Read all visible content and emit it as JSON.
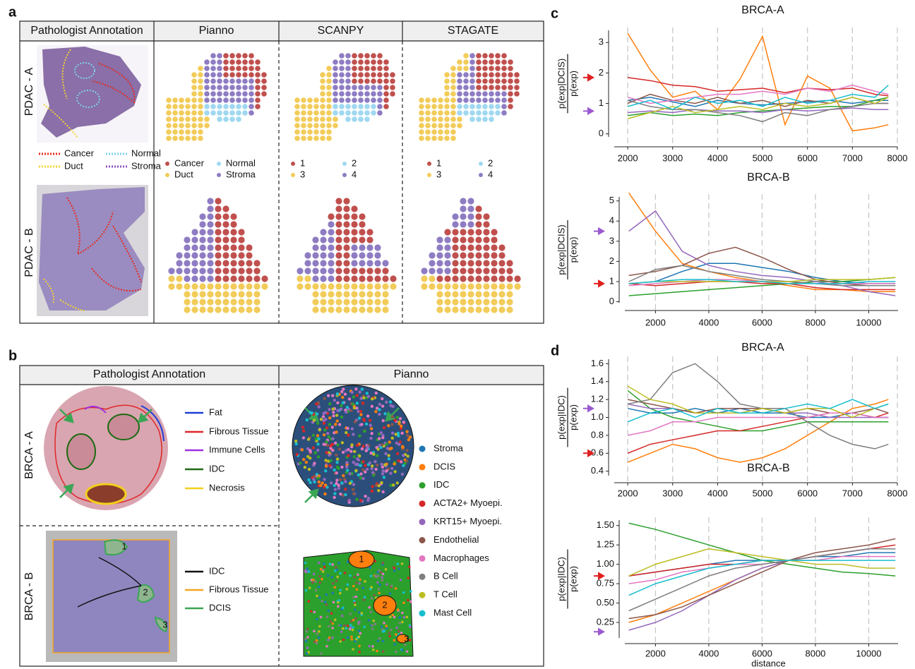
{
  "panel_labels": [
    "a",
    "b",
    "c",
    "d"
  ],
  "panel_a": {
    "columns": [
      "Pathologist Annotation",
      "Pianno",
      "SCANPY",
      "STAGATE"
    ],
    "rows": [
      "PDAC - A",
      "PDAC - B"
    ],
    "annotation_legend": [
      {
        "label": "Cancer",
        "color": "#e8291c"
      },
      {
        "label": "Normal",
        "color": "#7fd3f0"
      },
      {
        "label": "Duct",
        "color": "#f5d233"
      },
      {
        "label": "Stroma",
        "color": "#8c4fc2"
      }
    ],
    "pianno_legend": [
      {
        "label": "Cancer",
        "color": "#c0504d"
      },
      {
        "label": "Normal",
        "color": "#9fd8f0"
      },
      {
        "label": "Duct",
        "color": "#f2cc5a"
      },
      {
        "label": "Stroma",
        "color": "#8e7cc3"
      }
    ],
    "scanpy_legend": [
      "1",
      "2",
      "3",
      "4"
    ],
    "stagate_legend": [
      "1",
      "2",
      "3",
      "4"
    ]
  },
  "panel_b": {
    "columns": [
      "Pathologist Annotation",
      "Pianno"
    ],
    "rows": [
      "BRCA - A",
      "BRCA - B"
    ],
    "brca_a_legend": [
      {
        "label": "Fat",
        "color": "#1f3fd6"
      },
      {
        "label": "Fibrous Tissue",
        "color": "#e0272b"
      },
      {
        "label": "Immune Cells",
        "color": "#9b30e0"
      },
      {
        "label": "IDC",
        "color": "#1b6b12"
      },
      {
        "label": "Necrosis",
        "color": "#f2d01c"
      }
    ],
    "brca_b_legend": [
      {
        "label": "IDC",
        "color": "#111111"
      },
      {
        "label": "Fibrous Tissue",
        "color": "#f5a623"
      },
      {
        "label": "DCIS",
        "color": "#3aa655"
      }
    ],
    "region_numbers": [
      "1",
      "2",
      "3"
    ],
    "pianno_legend": [
      {
        "label": "Stroma",
        "color": "#1f77b4"
      },
      {
        "label": "DCIS",
        "color": "#ff7f0e"
      },
      {
        "label": "IDC",
        "color": "#2ca02c"
      },
      {
        "label": "ACTA2+ Myoepi.",
        "color": "#d62728"
      },
      {
        "label": "KRT15+ Myoepi.",
        "color": "#9467bd"
      },
      {
        "label": "Endothelial",
        "color": "#8c564b"
      },
      {
        "label": "Macrophages",
        "color": "#e377c2"
      },
      {
        "label": "B Cell",
        "color": "#7f7f7f"
      },
      {
        "label": "T Cell",
        "color": "#bcbd22"
      },
      {
        "label": "Mast Cell",
        "color": "#17becf"
      }
    ]
  },
  "chart_data": [
    {
      "type": "line",
      "title": "BRCA-A",
      "ylabel_numerator": "p(exp|DCIS)",
      "ylabel_denominator": "p(exp)",
      "grid": true,
      "xlim": [
        1700,
        8000
      ],
      "xticks": [
        2000,
        3000,
        4000,
        5000,
        6000,
        7000,
        8000
      ],
      "ylim": [
        -0.1,
        3.4
      ],
      "yticks": [
        0,
        1,
        2,
        3
      ],
      "arrows": [
        {
          "value": 1.85,
          "color": "#e02020"
        },
        {
          "value": 0.75,
          "color": "#9b59d0"
        }
      ],
      "x": [
        2000,
        2500,
        3000,
        3500,
        4000,
        4500,
        5000,
        5500,
        6000,
        6500,
        7000,
        7500,
        7800
      ],
      "series": [
        {
          "color": "#1f77b4",
          "values": [
            1.1,
            1.2,
            1.05,
            0.9,
            1.1,
            1.0,
            0.95,
            1.0,
            1.05,
            1.1,
            1.0,
            1.1,
            1.1
          ]
        },
        {
          "color": "#ff7f0e",
          "values": [
            3.3,
            2.1,
            1.2,
            1.4,
            0.8,
            1.8,
            3.2,
            0.3,
            1.9,
            1.5,
            0.1,
            0.2,
            0.3
          ]
        },
        {
          "color": "#2ca02c",
          "values": [
            0.6,
            0.7,
            0.6,
            0.65,
            0.6,
            0.7,
            0.75,
            0.8,
            0.85,
            0.9,
            0.9,
            1.1,
            1.2
          ]
        },
        {
          "color": "#d62728",
          "values": [
            1.85,
            1.75,
            1.6,
            1.55,
            1.4,
            1.45,
            1.5,
            1.35,
            1.5,
            1.45,
            1.5,
            1.3,
            1.25
          ]
        },
        {
          "color": "#9467bd",
          "values": [
            0.7,
            0.75,
            0.7,
            0.8,
            0.75,
            0.75,
            0.7,
            0.8,
            0.75,
            0.8,
            0.85,
            0.8,
            0.8
          ]
        },
        {
          "color": "#8c564b",
          "values": [
            1.0,
            1.3,
            1.1,
            1.0,
            1.2,
            1.0,
            1.1,
            0.9,
            1.1,
            1.0,
            1.2,
            1.0,
            1.0
          ]
        },
        {
          "color": "#e377c2",
          "values": [
            1.2,
            1.0,
            1.1,
            1.2,
            1.3,
            1.3,
            1.4,
            1.3,
            1.5,
            1.4,
            1.6,
            1.4,
            1.3
          ]
        },
        {
          "color": "#7f7f7f",
          "values": [
            1.1,
            0.9,
            0.8,
            0.8,
            0.7,
            0.6,
            0.4,
            0.7,
            0.6,
            0.8,
            0.9,
            1.0,
            1.0
          ]
        },
        {
          "color": "#bcbd22",
          "values": [
            0.5,
            0.7,
            0.9,
            0.7,
            0.8,
            0.9,
            0.8,
            1.0,
            0.9,
            1.0,
            1.2,
            1.0,
            1.2
          ]
        },
        {
          "color": "#17becf",
          "values": [
            0.9,
            1.1,
            0.8,
            1.2,
            1.0,
            1.1,
            0.9,
            1.2,
            1.0,
            1.1,
            1.3,
            1.2,
            1.6
          ]
        }
      ]
    },
    {
      "type": "line",
      "title": "BRCA-B",
      "ylabel_numerator": "p(exp|DCIS)",
      "ylabel_denominator": "p(exp)",
      "grid": true,
      "xlim": [
        850,
        11100
      ],
      "xticks": [
        2000,
        4000,
        6000,
        8000,
        10000
      ],
      "ylim": [
        -0.05,
        5.2
      ],
      "yticks": [
        0,
        1,
        2,
        3,
        4,
        5
      ],
      "arrows": [
        {
          "value": 3.5,
          "color": "#9b59d0"
        },
        {
          "value": 0.9,
          "color": "#e02020"
        }
      ],
      "x": [
        1000,
        2000,
        3000,
        4000,
        5000,
        6000,
        7000,
        8000,
        9000,
        10000,
        11000
      ],
      "series": [
        {
          "color": "#1f77b4",
          "values": [
            0.9,
            1.0,
            1.5,
            1.9,
            1.9,
            1.7,
            1.5,
            1.2,
            1.0,
            0.9,
            0.9
          ]
        },
        {
          "color": "#ff7f0e",
          "values": [
            5.4,
            3.5,
            1.9,
            1.5,
            1.2,
            1.0,
            0.8,
            0.6,
            0.6,
            0.5,
            0.5
          ]
        },
        {
          "color": "#2ca02c",
          "values": [
            0.3,
            0.4,
            0.5,
            0.6,
            0.7,
            0.8,
            0.9,
            1.0,
            1.0,
            1.1,
            1.2
          ]
        },
        {
          "color": "#d62728",
          "values": [
            0.9,
            0.8,
            0.9,
            1.0,
            1.0,
            0.9,
            0.9,
            0.7,
            0.6,
            0.6,
            0.6
          ]
        },
        {
          "color": "#9467bd",
          "values": [
            3.5,
            4.5,
            2.5,
            1.8,
            1.5,
            1.3,
            1.2,
            1.0,
            0.8,
            0.5,
            0.3
          ]
        },
        {
          "color": "#8c564b",
          "values": [
            1.3,
            1.5,
            1.8,
            2.4,
            2.7,
            2.2,
            1.6,
            1.1,
            0.9,
            0.8,
            0.8
          ]
        },
        {
          "color": "#e377c2",
          "values": [
            0.8,
            0.9,
            1.0,
            1.1,
            1.1,
            1.0,
            1.0,
            0.9,
            0.9,
            0.9,
            0.9
          ]
        },
        {
          "color": "#7f7f7f",
          "values": [
            1.0,
            1.6,
            1.8,
            1.5,
            1.3,
            1.1,
            1.0,
            0.9,
            0.8,
            0.8,
            0.8
          ]
        },
        {
          "color": "#bcbd22",
          "values": [
            0.9,
            1.0,
            1.0,
            1.0,
            1.0,
            1.0,
            1.0,
            1.1,
            1.1,
            1.1,
            1.2
          ]
        },
        {
          "color": "#17becf",
          "values": [
            0.9,
            1.0,
            1.1,
            1.1,
            1.0,
            1.0,
            0.9,
            0.9,
            0.9,
            1.0,
            1.0
          ]
        }
      ]
    },
    {
      "type": "line",
      "title": "BRCA-A",
      "ylabel_numerator": "p(exp|IDC)",
      "ylabel_denominator": "p(exp)",
      "grid": true,
      "xlim": [
        1700,
        8000
      ],
      "xticks": [
        2000,
        3000,
        4000,
        5000,
        6000,
        7000,
        8000
      ],
      "ylim": [
        0.35,
        1.65
      ],
      "yticks": [
        0.4,
        0.6,
        0.8,
        {
          "value": 1.0,
          "label": "1.0"
        },
        1.2,
        1.4,
        1.6
      ],
      "arrows": [
        {
          "value": 1.1,
          "color": "#9b59d0"
        },
        {
          "value": 0.6,
          "color": "#e02020"
        }
      ],
      "x": [
        2000,
        2500,
        3000,
        3500,
        4000,
        4500,
        5000,
        5500,
        6000,
        6500,
        7000,
        7500,
        7800
      ],
      "series": [
        {
          "color": "#1f77b4",
          "values": [
            1.1,
            1.05,
            1.05,
            1.1,
            1.05,
            1.1,
            1.05,
            1.05,
            1.0,
            1.0,
            1.05,
            1.0,
            1.0
          ]
        },
        {
          "color": "#ff7f0e",
          "values": [
            0.5,
            0.6,
            0.7,
            0.65,
            0.55,
            0.5,
            0.55,
            0.65,
            0.8,
            0.95,
            1.1,
            1.15,
            1.2
          ]
        },
        {
          "color": "#2ca02c",
          "values": [
            1.3,
            1.1,
            1.0,
            0.95,
            0.9,
            0.85,
            0.85,
            0.9,
            0.95,
            0.95,
            0.95,
            0.95,
            0.95
          ]
        },
        {
          "color": "#d62728",
          "values": [
            0.6,
            0.7,
            0.75,
            0.8,
            0.85,
            0.85,
            0.9,
            0.95,
            1.0,
            1.05,
            1.05,
            1.0,
            1.05
          ]
        },
        {
          "color": "#9467bd",
          "values": [
            1.15,
            1.1,
            1.1,
            1.05,
            1.05,
            1.05,
            1.1,
            1.05,
            1.05,
            1.0,
            1.0,
            1.0,
            1.0
          ]
        },
        {
          "color": "#8c564b",
          "values": [
            1.2,
            1.15,
            1.1,
            1.05,
            1.1,
            1.1,
            1.1,
            1.05,
            1.1,
            1.05,
            1.05,
            1.1,
            1.05
          ]
        },
        {
          "color": "#e377c2",
          "values": [
            0.8,
            0.85,
            0.95,
            0.95,
            1.0,
            1.0,
            1.0,
            1.0,
            1.0,
            1.05,
            1.05,
            1.0,
            1.0
          ]
        },
        {
          "color": "#7f7f7f",
          "values": [
            1.15,
            1.2,
            1.5,
            1.6,
            1.4,
            1.15,
            1.1,
            1.1,
            0.95,
            0.8,
            0.7,
            0.65,
            0.7
          ]
        },
        {
          "color": "#bcbd22",
          "values": [
            1.35,
            1.2,
            1.15,
            1.05,
            1.05,
            1.05,
            1.1,
            1.05,
            1.1,
            1.1,
            1.0,
            1.1,
            1.15
          ]
        },
        {
          "color": "#17becf",
          "values": [
            0.95,
            1.05,
            1.1,
            1.0,
            1.1,
            1.05,
            1.05,
            1.1,
            1.15,
            1.1,
            1.2,
            1.1,
            1.15
          ]
        }
      ]
    },
    {
      "type": "line",
      "title": "BRCA-B",
      "ylabel_numerator": "p(exp|IDC)",
      "ylabel_denominator": "p(exp)",
      "xlabel": "distance",
      "grid": true,
      "xlim": [
        850,
        11100
      ],
      "xticks": [
        2000,
        4000,
        6000,
        8000,
        10000
      ],
      "ylim": [
        0.05,
        1.57
      ],
      "yticks": [
        0.25,
        {
          "value": 0.5,
          "label": "0.50"
        },
        {
          "value": 0.75,
          "label": "0.75"
        },
        {
          "value": 1.0,
          "label": "1.00"
        },
        1.25,
        {
          "value": 1.5,
          "label": "1.50"
        }
      ],
      "arrows": [
        {
          "value": 0.85,
          "color": "#e02020"
        },
        {
          "value": 0.13,
          "color": "#9b59d0"
        }
      ],
      "x": [
        1000,
        2000,
        3000,
        4000,
        5000,
        6000,
        7000,
        8000,
        9000,
        10000,
        11000
      ],
      "series": [
        {
          "color": "#1f77b4",
          "values": [
            0.85,
            0.9,
            0.95,
            1.0,
            1.05,
            1.05,
            1.05,
            1.1,
            1.1,
            1.15,
            1.15
          ]
        },
        {
          "color": "#ff7f0e",
          "values": [
            0.25,
            0.35,
            0.5,
            0.65,
            0.8,
            0.95,
            1.05,
            1.1,
            1.15,
            1.2,
            1.2
          ]
        },
        {
          "color": "#2ca02c",
          "values": [
            1.53,
            1.45,
            1.35,
            1.25,
            1.15,
            1.05,
            1.0,
            0.95,
            0.9,
            0.88,
            0.85
          ]
        },
        {
          "color": "#d62728",
          "values": [
            0.85,
            0.9,
            0.95,
            1.0,
            1.0,
            1.05,
            1.05,
            1.1,
            1.15,
            1.2,
            1.25
          ]
        },
        {
          "color": "#9467bd",
          "values": [
            0.15,
            0.25,
            0.4,
            0.6,
            0.8,
            0.95,
            1.05,
            1.1,
            1.15,
            1.2,
            1.2
          ]
        },
        {
          "color": "#8c564b",
          "values": [
            0.3,
            0.35,
            0.45,
            0.6,
            0.75,
            0.9,
            1.05,
            1.15,
            1.2,
            1.25,
            1.33
          ]
        },
        {
          "color": "#e377c2",
          "values": [
            0.75,
            0.8,
            0.9,
            0.95,
            1.0,
            1.0,
            1.05,
            1.05,
            1.1,
            1.1,
            1.1
          ]
        },
        {
          "color": "#7f7f7f",
          "values": [
            0.4,
            0.55,
            0.7,
            0.85,
            0.95,
            1.0,
            1.05,
            1.1,
            1.15,
            1.2,
            1.2
          ]
        },
        {
          "color": "#bcbd22",
          "values": [
            0.85,
            1.0,
            1.1,
            1.2,
            1.15,
            1.1,
            1.05,
            1.0,
            1.0,
            0.95,
            0.95
          ]
        },
        {
          "color": "#17becf",
          "values": [
            0.6,
            0.75,
            0.85,
            0.95,
            1.0,
            1.05,
            1.05,
            1.05,
            1.05,
            1.05,
            1.05
          ]
        }
      ]
    }
  ]
}
